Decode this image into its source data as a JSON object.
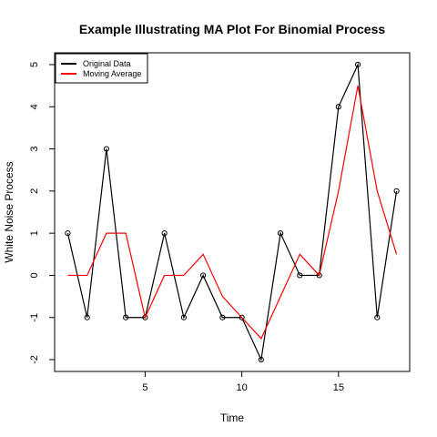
{
  "chart_data": {
    "type": "line",
    "title": "Example Illustrating MA Plot For Binomial Process",
    "xlabel": "Time",
    "ylabel": "White Noise Process",
    "xlim": [
      0.32,
      18.68
    ],
    "ylim": [
      -2.28,
      5.28
    ],
    "xticks": [
      5,
      10,
      15
    ],
    "yticks": [
      -2,
      -1,
      0,
      1,
      2,
      3,
      4,
      5
    ],
    "x": [
      1,
      2,
      3,
      4,
      5,
      6,
      7,
      8,
      9,
      10,
      11,
      12,
      13,
      14,
      15,
      16,
      17,
      18
    ],
    "series": [
      {
        "name": "Original Data",
        "color": "#000000",
        "markers": true,
        "values": [
          1,
          -1,
          3,
          -1,
          -1,
          1,
          -1,
          0,
          -1,
          -1,
          -2,
          1,
          0,
          0,
          4,
          5,
          -1,
          2
        ]
      },
      {
        "name": "Moving Average",
        "color": "#ff0000",
        "markers": false,
        "values": [
          0,
          0,
          1,
          1,
          -1,
          0,
          0,
          0.5,
          -0.5,
          -1,
          -1.5,
          -0.5,
          0.5,
          0,
          2,
          4.5,
          2,
          0.5
        ]
      }
    ],
    "legend": {
      "position": "top-left",
      "entries": [
        "Original Data",
        "Moving Average"
      ]
    },
    "grid": false
  }
}
